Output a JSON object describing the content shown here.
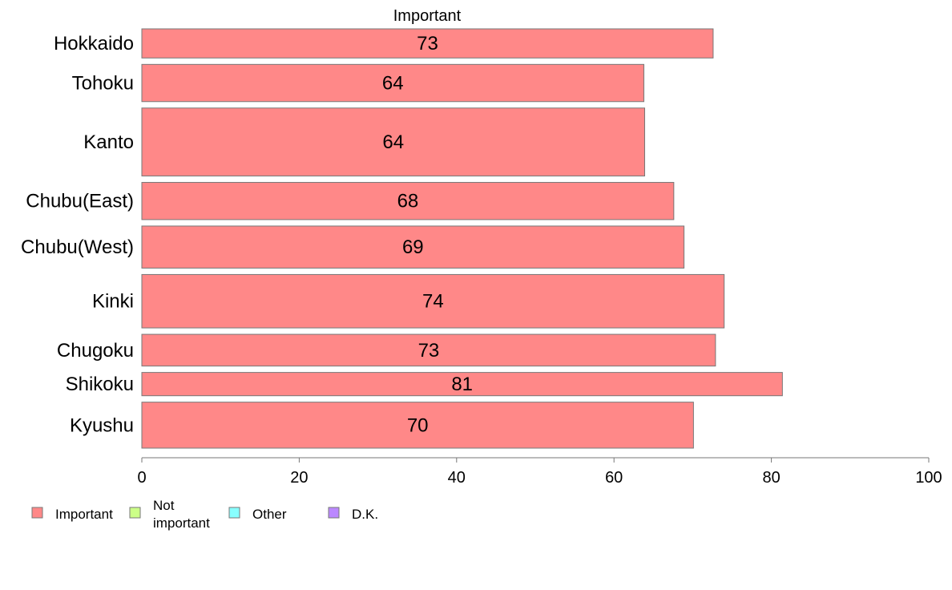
{
  "chart_data": {
    "type": "bar",
    "orientation": "horizontal",
    "title": "Important",
    "categories": [
      "Hokkaido",
      "Tohoku",
      "Kanto",
      "Chubu(East)",
      "Chubu(West)",
      "Kinki",
      "Chugoku",
      "Shikoku",
      "Kyushu"
    ],
    "series": [
      {
        "name": "Important",
        "values": [
          72.6,
          63.8,
          63.9,
          67.6,
          68.9,
          74.0,
          72.9,
          81.4,
          70.1
        ],
        "labels": [
          "73",
          "64",
          "64",
          "68",
          "69",
          "74",
          "73",
          "81",
          "70"
        ]
      }
    ],
    "bar_weights": [
      0.9,
      1.15,
      2.1,
      1.15,
      1.3,
      1.65,
      0.98,
      0.72,
      1.42
    ],
    "xlim": [
      0,
      100
    ],
    "xticks": [
      0,
      20,
      40,
      60,
      80,
      100
    ],
    "xlabel": "",
    "ylabel": "",
    "grid": false,
    "legend": {
      "position": "bottom-left",
      "entries": [
        {
          "label": "Important",
          "color": "#ff8888"
        },
        {
          "label": "Not important",
          "line1": "Not",
          "line2": "important",
          "color": "#ccff88"
        },
        {
          "label": "Other",
          "color": "#88ffff"
        },
        {
          "label": "D.K.",
          "color": "#bb88ff"
        }
      ]
    },
    "colors": {
      "bar": "#ff8888",
      "bar_stroke": "#777777",
      "axis": "#777777"
    }
  }
}
